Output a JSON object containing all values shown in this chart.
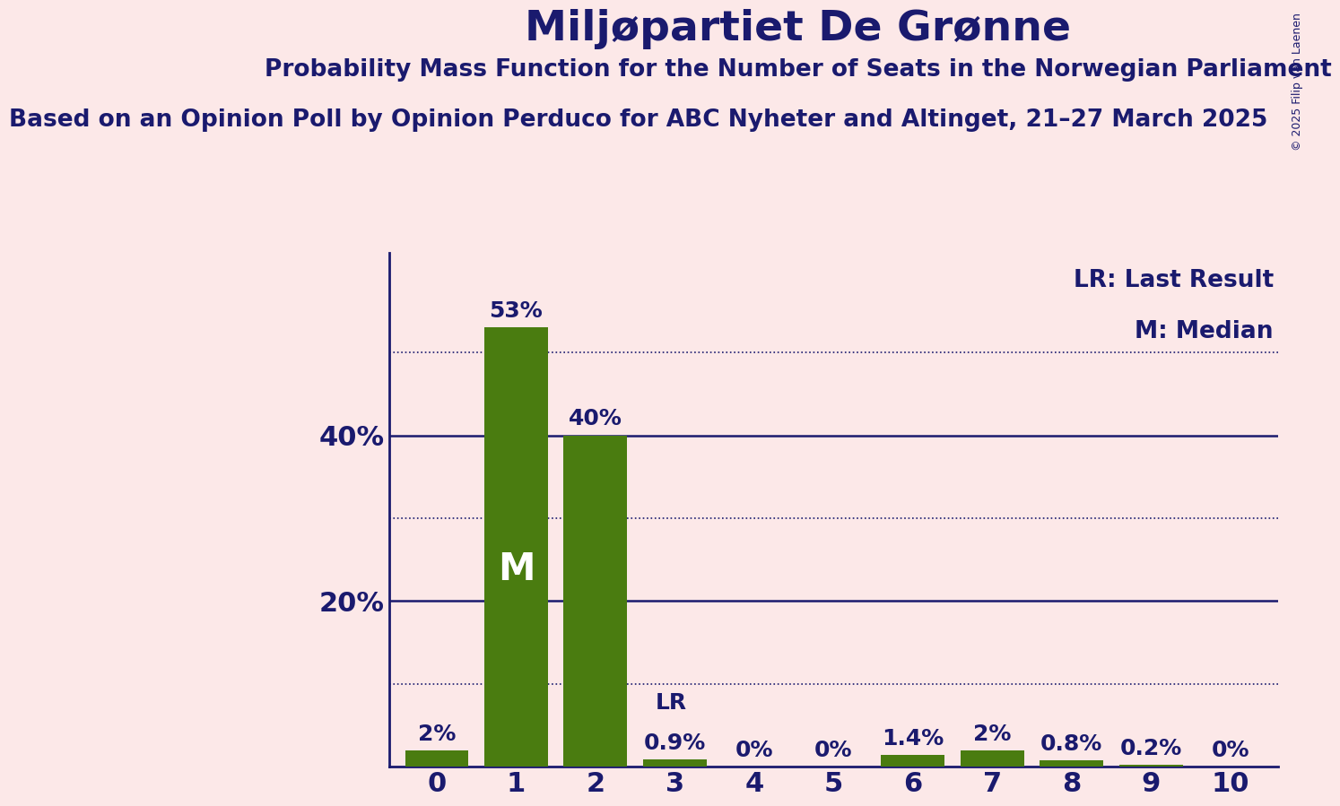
{
  "title": "Miljøpartiet De Grønne",
  "subtitle1": "Probability Mass Function for the Number of Seats in the Norwegian Parliament",
  "subtitle2": "Based on an Opinion Poll by Opinion Perduco for ABC Nyheter and Altinget, 21–27 March 2025",
  "copyright": "© 2025 Filip van Laenen",
  "categories": [
    0,
    1,
    2,
    3,
    4,
    5,
    6,
    7,
    8,
    9,
    10
  ],
  "values": [
    0.02,
    0.53,
    0.4,
    0.009,
    0.0,
    0.0,
    0.014,
    0.02,
    0.008,
    0.002,
    0.0
  ],
  "bar_labels": [
    "2%",
    "53%",
    "40%",
    "0.9%",
    "0%",
    "0%",
    "1.4%",
    "2%",
    "0.8%",
    "0.2%",
    "0%"
  ],
  "bar_color": "#4a7c10",
  "background_color": "#fce8e8",
  "text_color": "#1a1a6e",
  "title_fontsize": 34,
  "subtitle1_fontsize": 19,
  "subtitle2_fontsize": 19,
  "bar_label_fontsize": 18,
  "axis_tick_fontsize": 22,
  "legend_fontsize": 19,
  "median_bar": 1,
  "lr_bar": 3,
  "ylim": [
    0,
    0.62
  ],
  "solid_lines": [
    0.2,
    0.4
  ],
  "dotted_lines": [
    0.1,
    0.3,
    0.5
  ],
  "lr_legend": "LR: Last Result",
  "m_legend": "M: Median"
}
